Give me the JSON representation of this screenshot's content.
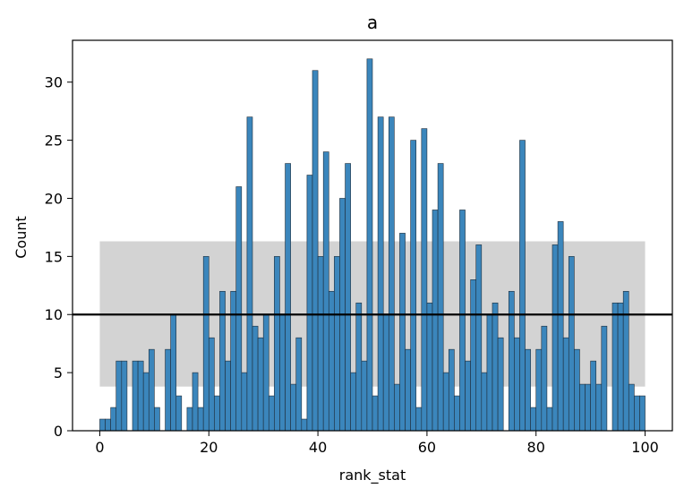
{
  "chart_data": {
    "type": "bar",
    "title": "a",
    "xlabel": "rank_stat",
    "ylabel": "Count",
    "xlim": [
      -5,
      105
    ],
    "ylim": [
      0,
      33.6
    ],
    "xticks": [
      0,
      20,
      40,
      60,
      80,
      100
    ],
    "yticks": [
      0,
      5,
      10,
      15,
      20,
      25,
      30
    ],
    "bin_start": 0,
    "bin_width": 1,
    "values": [
      1,
      1,
      2,
      6,
      6,
      0,
      6,
      6,
      5,
      7,
      2,
      0,
      7,
      10,
      3,
      0,
      2,
      5,
      2,
      15,
      8,
      3,
      12,
      6,
      12,
      21,
      5,
      27,
      9,
      8,
      10,
      3,
      15,
      10,
      23,
      4,
      8,
      1,
      22,
      31,
      15,
      24,
      12,
      15,
      20,
      23,
      5,
      11,
      6,
      32,
      3,
      27,
      10,
      27,
      4,
      17,
      7,
      25,
      2,
      26,
      11,
      19,
      23,
      5,
      7,
      3,
      19,
      6,
      13,
      16,
      5,
      10,
      11,
      8,
      0,
      12,
      8,
      25,
      7,
      2,
      7,
      9,
      2,
      16,
      18,
      8,
      15,
      7,
      4,
      4,
      6,
      4,
      9,
      0,
      11,
      11,
      12,
      4,
      3,
      3
    ],
    "reference_line": 10,
    "band": {
      "x_range": [
        0,
        100
      ],
      "y_range": [
        3.8,
        16.3
      ]
    },
    "grid": false,
    "colors": {
      "bar": "#3b86bc",
      "bar_edge": "#1f2d3a",
      "band": "#d3d3d3",
      "line": "#000000"
    }
  }
}
